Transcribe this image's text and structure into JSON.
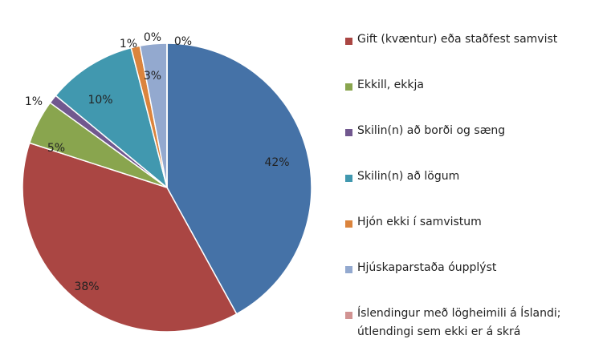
{
  "chart_data": {
    "type": "pie",
    "categories": [
      null,
      "Gift (kvæntur) eða staðfest samvist",
      "Ekkill, ekkja",
      "Skilin(n) að borði og sæng",
      "Skilin(n) að lögum",
      "Hjón ekki í samvistum",
      "Hjúskaparstaða óupplýst",
      "Íslendingur með lögheimili á Íslandi;\nútlendingi sem ekki er á skrá",
      null
    ],
    "values": [
      42,
      38,
      5,
      1,
      10,
      1,
      3,
      0,
      0
    ],
    "value_labels": [
      "42%",
      "38%",
      "5%",
      "1%",
      "10%",
      "1%",
      "3%",
      "0%",
      "0%"
    ],
    "colors": [
      "#4572a7",
      "#aa4643",
      "#89a54e",
      "#71588f",
      "#4198af",
      "#db843d",
      "#93a9cf",
      "#d19392",
      "#b9cd96"
    ]
  }
}
